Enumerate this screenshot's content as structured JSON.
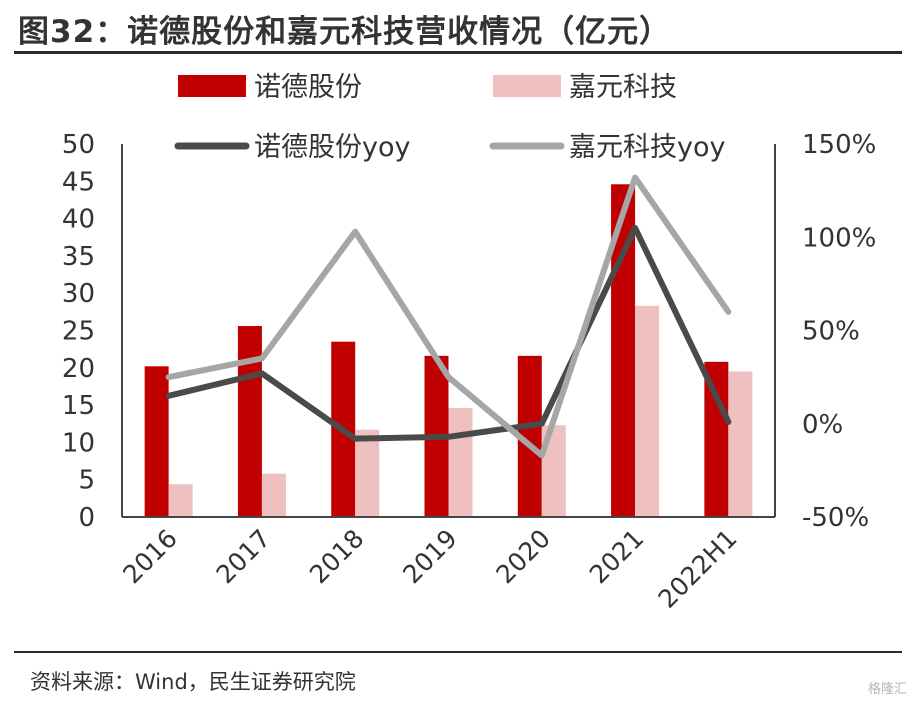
{
  "title": "图32：诺德股份和嘉元科技营收情况（亿元）",
  "source": "资料来源：Wind，民生证券研究院",
  "watermark": "格隆汇",
  "colors": {
    "nuode_bar": "#c00000",
    "jiayuan_bar": "#eec0c0",
    "nuode_line": "#4a4a4a",
    "jiayuan_line": "#a6a6a6",
    "axis": "#444444"
  },
  "chart_data": {
    "type": "bar",
    "categories": [
      "2016",
      "2017",
      "2018",
      "2019",
      "2020",
      "2021",
      "2022H1"
    ],
    "series": [
      {
        "name": "诺德股份",
        "kind": "bar",
        "axis": "left",
        "values": [
          20.2,
          25.6,
          23.5,
          21.6,
          21.6,
          44.6,
          20.8
        ]
      },
      {
        "name": "嘉元科技",
        "kind": "bar",
        "axis": "left",
        "values": [
          4.4,
          5.8,
          11.7,
          14.6,
          12.3,
          28.3,
          19.5
        ]
      },
      {
        "name": "诺德股份yoy",
        "kind": "line",
        "axis": "right",
        "values": [
          15,
          27,
          -8,
          -7,
          0,
          105,
          1
        ]
      },
      {
        "name": "嘉元科技yoy",
        "kind": "line",
        "axis": "right",
        "values": [
          25,
          35,
          103,
          25,
          -17,
          132,
          60
        ]
      }
    ],
    "y_left": {
      "lim": [
        0,
        50
      ],
      "ticks": [
        "0",
        "5",
        "10",
        "15",
        "20",
        "25",
        "30",
        "35",
        "40",
        "45",
        "50"
      ]
    },
    "y_right": {
      "lim": [
        -50,
        150
      ],
      "ticks": [
        "-50%",
        "0%",
        "50%",
        "100%",
        "150%"
      ]
    },
    "legend_position": "top",
    "grid": false
  }
}
